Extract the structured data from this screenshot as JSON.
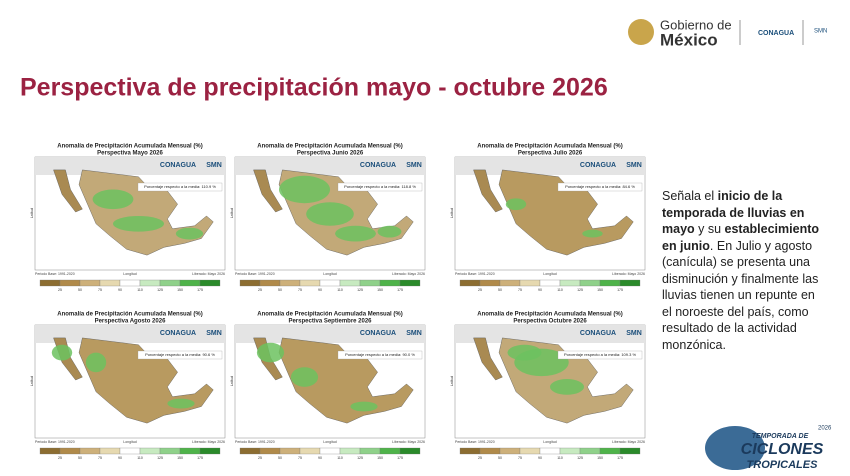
{
  "header": {
    "gov_line1": "Gobierno de",
    "gov_line2": "México",
    "conagua": "CONAGUA",
    "smn": "SMN"
  },
  "title": "Perspectiva de precipitación mayo - octubre 2026",
  "panel_common": {
    "title": "Anomalía de Precipitación Acumulada Mensual (%)",
    "logo1": "CONAGUA",
    "logo2": "SMN",
    "base": "Periodo Base: 1991-2020",
    "xlabel": "Longitud",
    "ylabel": "Latitud",
    "released": "Liberado: Mayo 2026",
    "colorbar_ticks": [
      25,
      50,
      75,
      90,
      110,
      125,
      150,
      175
    ]
  },
  "panels": [
    {
      "subtitle": "Perspectiva Mayo 2026",
      "mean": "Porcentaje respecto a la media: 110.9 %"
    },
    {
      "subtitle": "Perspectiva Junio 2026",
      "mean": "Porcentaje respecto a la media: 118.8 %"
    },
    {
      "subtitle": "Perspectiva Julio 2026",
      "mean": "Porcentaje respecto a la media: 84.6 %"
    },
    {
      "subtitle": "Perspectiva Agosto 2026",
      "mean": "Porcentaje respecto a la media: 90.6 %"
    },
    {
      "subtitle": "Perspectiva Septiembre 2026",
      "mean": "Porcentaje respecto a la media: 90.0 %"
    },
    {
      "subtitle": "Perspectiva Octubre 2026",
      "mean": "Porcentaje respecto a la media: 109.3 %"
    }
  ],
  "side_text": [
    {
      "text": "Señala el ",
      "bold": false
    },
    {
      "text": "inicio de la temporada de lluvias en mayo",
      "bold": true
    },
    {
      "text": " y su ",
      "bold": false
    },
    {
      "text": "establecimiento en junio",
      "bold": true
    },
    {
      "text": ". En Julio y agosto (canícula) se presenta una disminución y finalmente las lluvias tienen un repunte en el noroeste del país, como resultado de la actividad monzónica.",
      "bold": false
    }
  ],
  "footer_logo": {
    "line1": "TEMPORADA DE",
    "year": "2026",
    "line2": "CICLONES",
    "line3": "TROPICALES"
  }
}
